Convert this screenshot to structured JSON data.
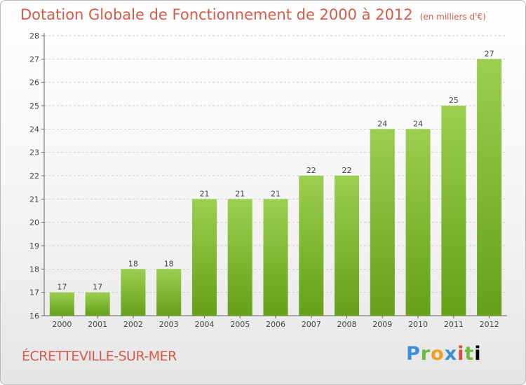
{
  "header": {
    "title": "Dotation Globale de Fonctionnement de 2000 à 2012",
    "subtitle": "(en milliers d'€)"
  },
  "footer": {
    "commune": "ÉCRETTEVILLE-SUR-MER",
    "logo": "Proxiti"
  },
  "colors": {
    "bar_top": "#9bcf50",
    "bar_bottom": "#65a018",
    "title": "#d55b4a",
    "grid": "#cccccc"
  },
  "chart_data": {
    "type": "bar",
    "categories": [
      "2000",
      "2001",
      "2002",
      "2003",
      "2004",
      "2005",
      "2006",
      "2007",
      "2008",
      "2009",
      "2010",
      "2011",
      "2012"
    ],
    "values": [
      17,
      17,
      18,
      18,
      21,
      21,
      21,
      22,
      22,
      24,
      24,
      25,
      27
    ],
    "ylim": [
      16,
      28
    ],
    "yticks": [
      16,
      17,
      18,
      19,
      20,
      21,
      22,
      23,
      24,
      25,
      26,
      27,
      28
    ],
    "grid": true,
    "data_labels": true
  }
}
